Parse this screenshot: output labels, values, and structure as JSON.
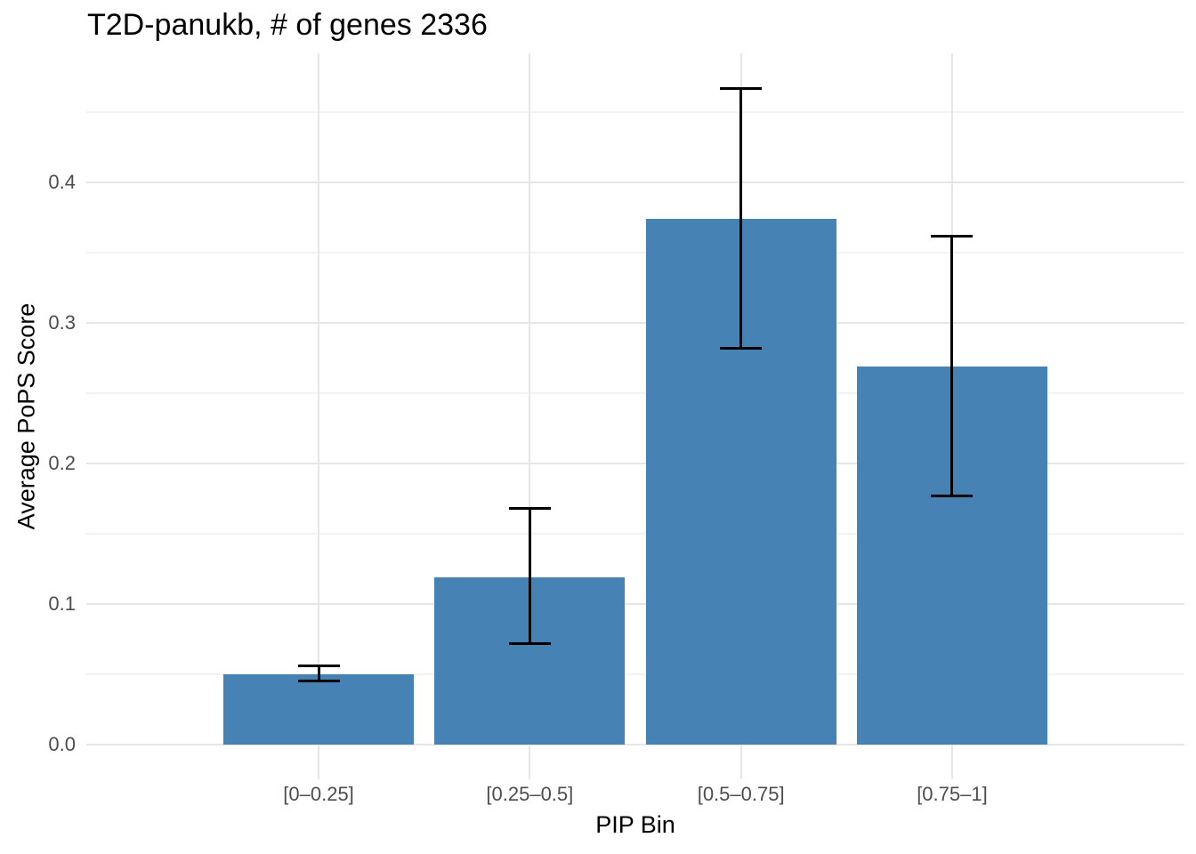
{
  "chart_data": {
    "type": "bar",
    "title": "T2D-panukb, # of genes 2336",
    "xlabel": "PIP Bin",
    "ylabel": "Average PoPS Score",
    "categories": [
      "[0–0.25]",
      "[0.25–0.5]",
      "[0.5–0.75]",
      "[0.75–1]"
    ],
    "values": [
      0.05,
      0.119,
      0.374,
      0.269
    ],
    "error_low": [
      0.045,
      0.072,
      0.282,
      0.177
    ],
    "error_high": [
      0.056,
      0.168,
      0.467,
      0.362
    ],
    "yticks": [
      0.0,
      0.1,
      0.2,
      0.3,
      0.4
    ],
    "ytick_labels": [
      "0.0",
      "0.1",
      "0.2",
      "0.3",
      "0.4"
    ],
    "minor_yticks": [
      0.05,
      0.15,
      0.25,
      0.35,
      0.45
    ],
    "ylim": [
      -0.025,
      0.492
    ],
    "grid": true,
    "legend": false,
    "colors": {
      "bar_fill": "#4682B4",
      "error_bar": "#000000",
      "grid_major": "#e6e6e6",
      "grid_minor": "#f2f2f2",
      "tick_label": "#4d4d4d",
      "text": "#000000",
      "background": "#ffffff"
    }
  }
}
